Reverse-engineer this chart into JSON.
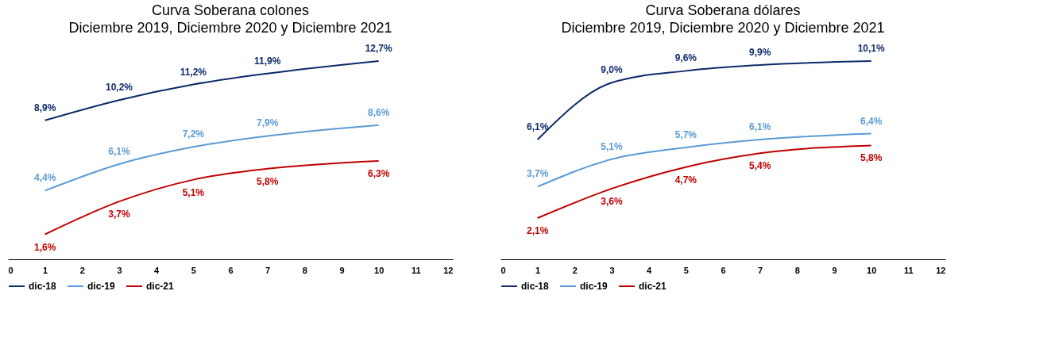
{
  "chart_data": [
    {
      "type": "line",
      "title": "Curva Soberana colones",
      "subtitle": "Diciembre 2019, Diciembre 2020 y Diciembre 2021",
      "x": [
        1,
        3,
        5,
        7,
        10
      ],
      "xlim": [
        0,
        12
      ],
      "xticks": [
        0,
        1,
        2,
        3,
        4,
        5,
        6,
        7,
        8,
        9,
        10,
        11,
        12
      ],
      "tick_labels": "x",
      "grid": false,
      "legend": "bottom",
      "marker": "none",
      "series": [
        {
          "name": "dic-18",
          "color": "#0d2a6b",
          "values": [
            8.9,
            10.2,
            11.2,
            11.9,
            12.7
          ],
          "value_labels": [
            "8,9%",
            "10,2%",
            "11,2%",
            "11,9%",
            "12,7%"
          ]
        },
        {
          "name": "dic-19",
          "color": "#5b9bd5",
          "values": [
            4.4,
            6.1,
            7.2,
            7.9,
            8.6
          ],
          "value_labels": [
            "4,4%",
            "6,1%",
            "7,2%",
            "7,9%",
            "8,6%"
          ]
        },
        {
          "name": "dic-21",
          "color": "#c00000",
          "values": [
            1.6,
            3.7,
            5.1,
            5.8,
            6.3
          ],
          "value_labels": [
            "1,6%",
            "3,7%",
            "5,1%",
            "5,8%",
            "6,3%"
          ]
        }
      ]
    },
    {
      "type": "line",
      "title": "Curva Soberana dólares",
      "subtitle": "Diciembre 2019, Diciembre 2020 y Diciembre 2021",
      "x": [
        1,
        3,
        5,
        7,
        10
      ],
      "xlim": [
        0,
        12
      ],
      "xticks": [
        0,
        1,
        2,
        3,
        4,
        5,
        6,
        7,
        8,
        9,
        10,
        11,
        12
      ],
      "tick_labels": "x",
      "grid": false,
      "legend": "bottom",
      "marker": "none",
      "series": [
        {
          "name": "dic-18",
          "color": "#0d2a6b",
          "values": [
            6.1,
            9.0,
            9.6,
            9.9,
            10.1
          ],
          "value_labels": [
            "6,1%",
            "9,0%",
            "9,6%",
            "9,9%",
            "10,1%"
          ]
        },
        {
          "name": "dic-19",
          "color": "#5b9bd5",
          "values": [
            3.7,
            5.1,
            5.7,
            6.1,
            6.4
          ],
          "value_labels": [
            "3,7%",
            "5,1%",
            "5,7%",
            "6,1%",
            "6,4%"
          ]
        },
        {
          "name": "dic-21",
          "color": "#c00000",
          "values": [
            2.1,
            3.6,
            4.7,
            5.4,
            5.8
          ],
          "value_labels": [
            "2,1%",
            "3,6%",
            "4,7%",
            "5,4%",
            "5,8%"
          ]
        }
      ]
    }
  ]
}
